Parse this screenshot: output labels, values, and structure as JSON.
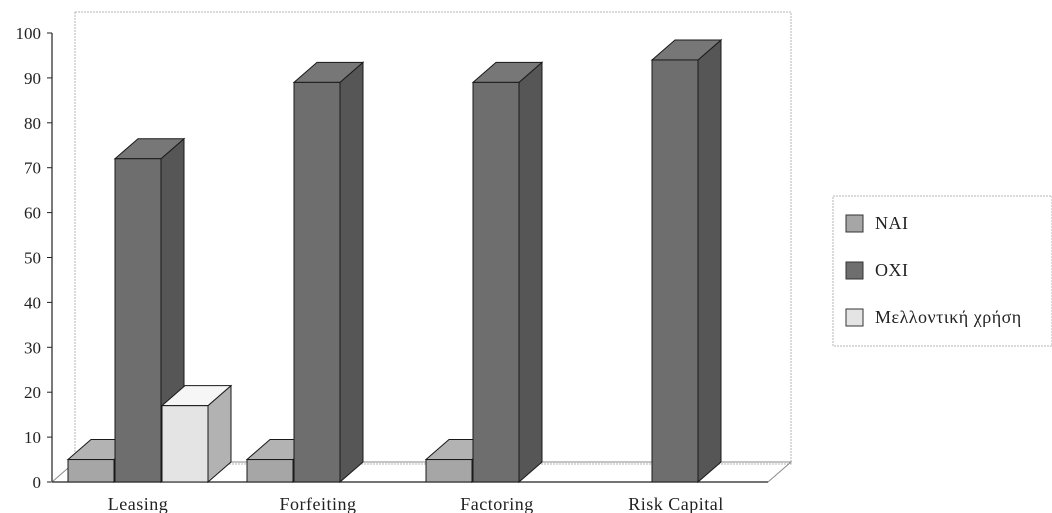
{
  "chart_data": {
    "type": "bar",
    "title": "",
    "xlabel": "",
    "ylabel": "",
    "ylim": [
      0,
      100
    ],
    "yticks": [
      0,
      10,
      20,
      30,
      40,
      50,
      60,
      70,
      80,
      90,
      100
    ],
    "categories": [
      "Leasing",
      "Forfeiting",
      "Factoring",
      "Risk Capital"
    ],
    "series": [
      {
        "name": "NAI",
        "values": [
          5,
          5,
          5,
          0
        ],
        "color": "#a6a6a6"
      },
      {
        "name": "OXI",
        "values": [
          72,
          89,
          89,
          94
        ],
        "color": "#6e6e6e"
      },
      {
        "name": "Μελλοντική χρήση",
        "values": [
          17,
          0,
          0,
          0
        ],
        "color": "#e4e4e4"
      }
    ],
    "grid": false,
    "legend_position": "right",
    "style": "3d-column"
  }
}
